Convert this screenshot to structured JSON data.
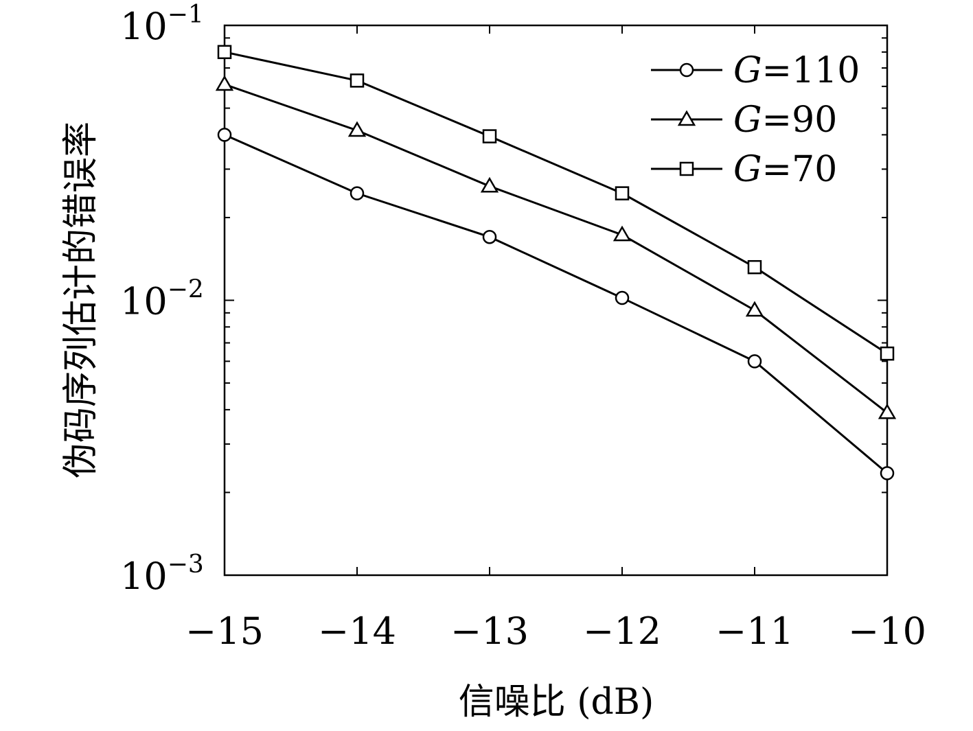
{
  "chart_data": {
    "type": "line",
    "xlabel": "信噪比 (dB)",
    "ylabel": "伪码序列估计的错误率",
    "x": [
      -15,
      -14,
      -13,
      -12,
      -11,
      -10
    ],
    "x_tick_labels": [
      "−15",
      "−14",
      "−13",
      "−12",
      "−11",
      "−10"
    ],
    "xlim": [
      -15,
      -10
    ],
    "ylim": [
      0.001,
      0.1
    ],
    "yscale": "log",
    "y_ticks": [
      {
        "base": "10",
        "exp": "−1",
        "value": 0.1
      },
      {
        "base": "10",
        "exp": "−2",
        "value": 0.01
      },
      {
        "base": "10",
        "exp": "−3",
        "value": 0.001
      }
    ],
    "grid": false,
    "legend_position": "top-right",
    "series": [
      {
        "name": "G=110",
        "name_var": "G",
        "name_rest": "=110",
        "marker": "circle",
        "values": [
          0.04,
          0.0245,
          0.017,
          0.0102,
          0.006,
          0.00235
        ]
      },
      {
        "name": "G=90",
        "name_var": "G",
        "name_rest": "=90",
        "marker": "triangle",
        "values": [
          0.061,
          0.0415,
          0.026,
          0.0173,
          0.0092,
          0.0039
        ]
      },
      {
        "name": "G=70",
        "name_var": "G",
        "name_rest": "=70",
        "marker": "square",
        "values": [
          0.08,
          0.063,
          0.0395,
          0.0245,
          0.0132,
          0.0064
        ]
      }
    ]
  }
}
